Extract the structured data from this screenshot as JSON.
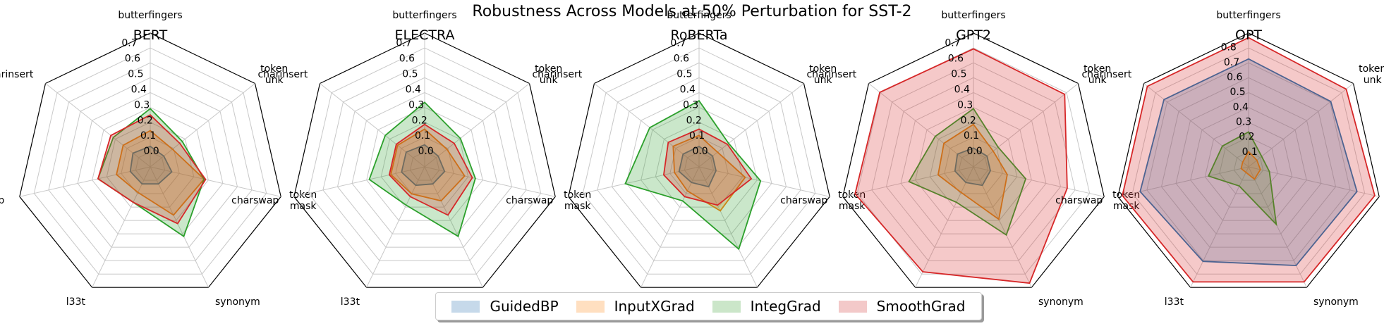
{
  "title": "Robustness Across Models at 50% Perturbation for SST-2",
  "legend": {
    "entries": [
      "GuidedBP",
      "InputXGrad",
      "IntegGrad",
      "SmoothGrad"
    ],
    "colors": [
      "#1f77b4",
      "#ff7f0e",
      "#2ca02c",
      "#d62728"
    ]
  },
  "chart_data": [
    {
      "type": "radar",
      "title": "BERT",
      "axes": [
        "butterfingers",
        "token\nunk",
        "token\nmask",
        "synonym",
        "l33t",
        "charswap",
        "charinsert"
      ],
      "rticks": [
        "0.0",
        "0.1",
        "0.2",
        "0.3",
        "0.4",
        "0.5",
        "0.6",
        "0.7"
      ],
      "rlim": [
        -0.1,
        0.75
      ],
      "series": [
        {
          "name": "GuidedBP",
          "values": [
            0.03,
            0.01,
            0.04,
            0.02,
            0.02,
            0.03,
            0.04
          ]
        },
        {
          "name": "InputXGrad",
          "values": [
            0.13,
            0.08,
            0.25,
            0.24,
            0.08,
            0.12,
            0.12
          ]
        },
        {
          "name": "IntegGrad",
          "values": [
            0.27,
            0.16,
            0.25,
            0.39,
            0.15,
            0.24,
            0.2
          ]
        },
        {
          "name": "SmoothGrad",
          "values": [
            0.23,
            0.14,
            0.26,
            0.3,
            0.15,
            0.24,
            0.22
          ]
        }
      ]
    },
    {
      "type": "radar",
      "title": "ELECTRA",
      "axes": [
        "butterfingers",
        "token\nunk",
        "token\nmask",
        "synonym",
        "l33t",
        "charswap",
        "charinsert"
      ],
      "rticks": [
        "0.0",
        "0.1",
        "0.2",
        "0.3",
        "0.4",
        "0.5",
        "0.6",
        "0.7"
      ],
      "rlim": [
        -0.1,
        0.75
      ],
      "series": [
        {
          "name": "GuidedBP",
          "values": [
            0.04,
            0.01,
            0.03,
            0.02,
            0.03,
            0.05,
            0.05
          ]
        },
        {
          "name": "InputXGrad",
          "values": [
            0.14,
            0.08,
            0.16,
            0.14,
            0.09,
            0.12,
            0.12
          ]
        },
        {
          "name": "IntegGrad",
          "values": [
            0.31,
            0.19,
            0.23,
            0.39,
            0.17,
            0.26,
            0.22
          ]
        },
        {
          "name": "SmoothGrad",
          "values": [
            0.17,
            0.14,
            0.21,
            0.24,
            0.11,
            0.13,
            0.13
          ]
        }
      ]
    },
    {
      "type": "radar",
      "title": "RoBERTa",
      "axes": [
        "butterfingers",
        "token\nunk",
        "token\nmask",
        "synonym",
        "l33t",
        "charswap",
        "charinsert"
      ],
      "rticks": [
        "0.0",
        "0.1",
        "0.2",
        "0.3",
        "0.4",
        "0.5",
        "0.6",
        "0.7"
      ],
      "rlim": [
        -0.1,
        0.75
      ],
      "series": [
        {
          "name": "GuidedBP",
          "values": [
            0.03,
            0.01,
            0.01,
            0.04,
            0.01,
            0.03,
            0.03
          ]
        },
        {
          "name": "InputXGrad",
          "values": [
            0.1,
            0.05,
            0.2,
            0.21,
            0.07,
            0.06,
            0.11
          ]
        },
        {
          "name": "IntegGrad",
          "values": [
            0.32,
            0.14,
            0.3,
            0.48,
            0.14,
            0.38,
            0.3
          ]
        },
        {
          "name": "SmoothGrad",
          "values": [
            0.14,
            0.13,
            0.24,
            0.17,
            0.11,
            0.13,
            0.15
          ]
        }
      ]
    },
    {
      "type": "radar",
      "title": "GPT2",
      "axes": [
        "butterfingers",
        "token\nunk",
        "token\nmask",
        "synonym",
        "l33t",
        "charswap",
        "charinsert"
      ],
      "rticks": [
        "0.0",
        "0.1",
        "0.2",
        "0.3",
        "0.4",
        "0.5",
        "0.6",
        "0.7"
      ],
      "rlim": [
        -0.1,
        0.75
      ],
      "series": [
        {
          "name": "GuidedBP",
          "values": [
            0.02,
            0.01,
            0.01,
            0.03,
            0.01,
            0.02,
            0.03
          ]
        },
        {
          "name": "InputXGrad",
          "values": [
            0.17,
            0.06,
            0.12,
            0.27,
            0.08,
            0.13,
            0.14
          ]
        },
        {
          "name": "IntegGrad",
          "values": [
            0.27,
            0.1,
            0.24,
            0.38,
            0.15,
            0.32,
            0.21
          ]
        },
        {
          "name": "SmoothGrad",
          "values": [
            0.65,
            0.64,
            0.51,
            0.72,
            0.64,
            0.67,
            0.66
          ]
        }
      ]
    },
    {
      "type": "radar",
      "title": "OPT",
      "axes": [
        "butterfingers",
        "token\nunk",
        "token\nmask",
        "synonym",
        "l33t",
        "charswap",
        "charinsert"
      ],
      "rticks": [
        "0.1",
        "0.2",
        "0.3",
        "0.4",
        "0.5",
        "0.6",
        "0.7",
        "0.8"
      ],
      "rlim": [
        0.0,
        0.88
      ],
      "series": [
        {
          "name": "GuidedBP",
          "values": [
            0.71,
            0.69,
            0.73,
            0.72,
            0.69,
            0.73,
            0.71
          ]
        },
        {
          "name": "InputXGrad",
          "values": [
            0.1,
            0.07,
            0.08,
            0.09,
            0.04,
            0.05,
            0.05
          ]
        },
        {
          "name": "IntegGrad",
          "values": [
            0.23,
            0.11,
            0.14,
            0.42,
            0.14,
            0.27,
            0.22
          ]
        },
        {
          "name": "SmoothGrad",
          "values": [
            0.85,
            0.82,
            0.85,
            0.84,
            0.84,
            0.85,
            0.85
          ]
        }
      ]
    }
  ]
}
